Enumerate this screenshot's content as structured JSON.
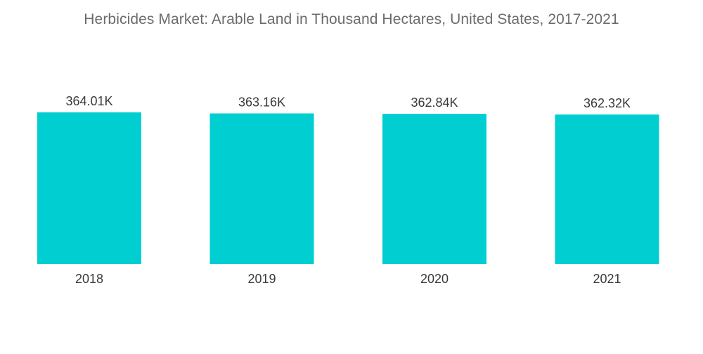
{
  "chart_data": {
    "type": "bar",
    "title": "Herbicides Market: Arable Land in Thousand Hectares, United States, 2017-2021",
    "categories": [
      "2018",
      "2019",
      "2020",
      "2021"
    ],
    "values": [
      364.01,
      363.16,
      362.84,
      362.32
    ],
    "value_labels": [
      "364.01K",
      "363.16K",
      "362.84K",
      "362.32K"
    ],
    "bar_color": "#00CED1",
    "xlabel": "",
    "ylabel": "",
    "grid": false,
    "legend": "none"
  }
}
